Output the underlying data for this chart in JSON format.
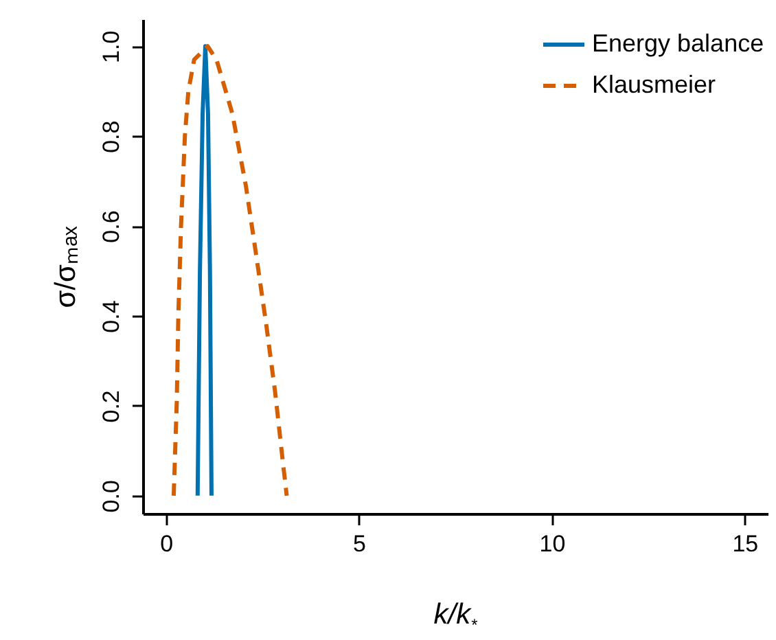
{
  "chart_data": {
    "type": "line",
    "xlabel": "k/k$_{*}$",
    "ylabel": "σ/σₘₐₓ",
    "xlim": [
      -0.6,
      15.6
    ],
    "xticks": [
      0,
      5,
      10,
      15
    ],
    "ylim": [
      -0.04,
      1.06
    ],
    "yticks": [
      {
        "value": 0,
        "label": "0.0"
      },
      0.2,
      0.4,
      0.6,
      0.8,
      {
        "value": 1,
        "label": "1.0"
      }
    ],
    "legend": "top right",
    "series": [
      {
        "name": "Energy balance",
        "color": "#0072b2",
        "line_style": "solid",
        "x": [
          0.82,
          0.88,
          0.95,
          1.02,
          1.09,
          1.14,
          1.18
        ],
        "values": [
          0,
          0.5,
          0.85,
          1,
          0.85,
          0.5,
          0
        ]
      },
      {
        "name": "Klausmeier",
        "color": "#d55e00",
        "line_style": "dashed",
        "x": [
          0.2,
          0.28,
          0.32,
          0.39,
          0.49,
          0.58,
          0.73,
          1.08,
          1.31,
          1.72,
          2.07,
          2.33,
          2.6,
          2.83,
          3.03,
          3.13
        ],
        "values": [
          0,
          0.21,
          0.4,
          0.6,
          0.8,
          0.9,
          0.97,
          1,
          0.97,
          0.85,
          0.69,
          0.54,
          0.38,
          0.23,
          0.075,
          0
        ]
      }
    ]
  }
}
